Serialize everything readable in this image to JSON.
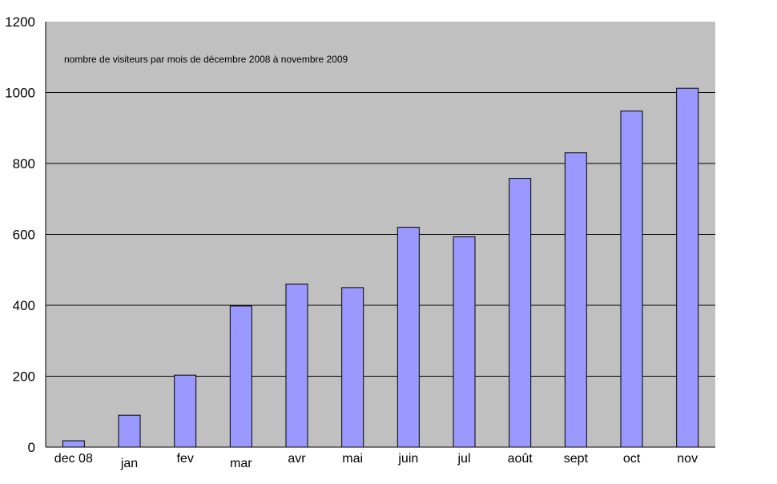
{
  "chart_data": {
    "type": "bar",
    "title": "nombre de visiteurs par mois de décembre 2008 à novembre 2009",
    "categories": [
      "dec 08",
      "jan",
      "fev",
      "mar",
      "avr",
      "mai",
      "juin",
      "jul",
      "août",
      "sept",
      "oct",
      "nov"
    ],
    "values": [
      18,
      90,
      203,
      398,
      460,
      450,
      620,
      593,
      758,
      830,
      948,
      1012
    ],
    "ylim": [
      0,
      1200
    ],
    "yticks": [
      "0",
      "200",
      "400",
      "600",
      "800",
      "1000",
      "1200"
    ],
    "xlabel": "",
    "ylabel": "",
    "grid": true,
    "legend": "none",
    "colors": {
      "plot_background": "#c0c0c0",
      "bar_fill": "#9999ff",
      "bar_stroke": "#000000",
      "gridline": "#000000"
    }
  }
}
